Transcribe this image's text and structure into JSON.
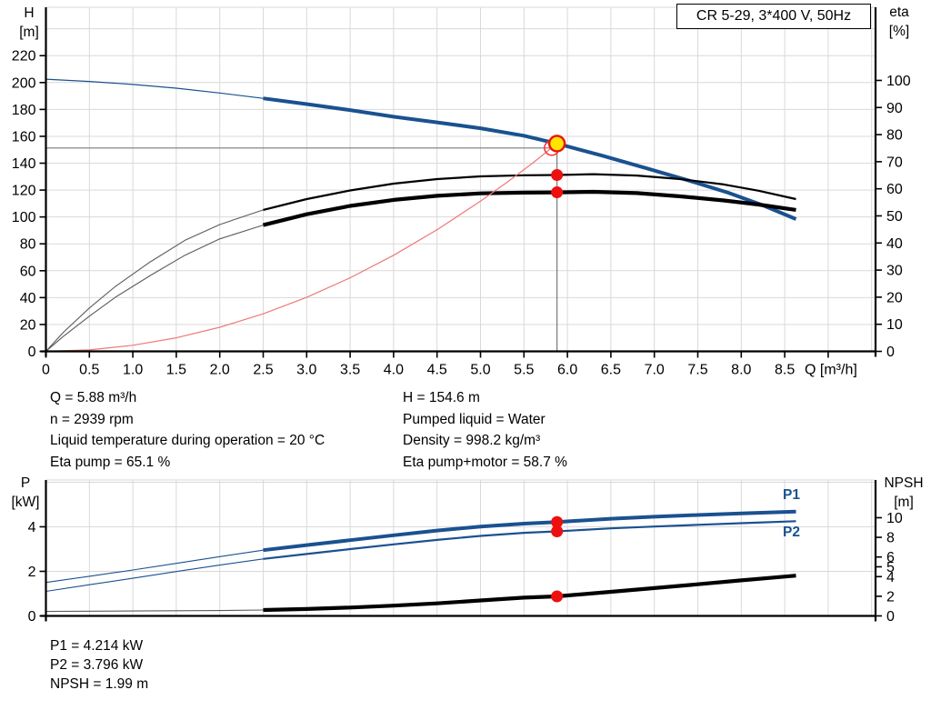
{
  "title_box": {
    "label": "CR 5-29, 3*400 V, 50Hz"
  },
  "axis_corner_labels": {
    "top_left": [
      "H",
      "[m]"
    ],
    "top_right": [
      "eta",
      "[%]"
    ],
    "bottom_left": [
      "P",
      "[kW]"
    ],
    "bottom_right": [
      "NPSH",
      "[m]"
    ]
  },
  "info_blocks": {
    "left": [
      "Q = 5.88 m³/h",
      "n = 2939 rpm",
      "Liquid temperature during operation = 20 °C",
      "Eta pump = 65.1 %"
    ],
    "right": [
      "H = 154.6 m",
      "Pumped liquid = Water",
      "Density = 998.2 kg/m³",
      "Eta pump+motor = 58.7 %"
    ],
    "bottom": [
      "P1 = 4.214 kW",
      "P2 = 3.796 kW",
      "NPSH = 1.99 m"
    ]
  },
  "series_labels": {
    "p1": "P1",
    "p2": "P2"
  },
  "colors": {
    "curve_blue": "#1a5190",
    "black": "#000000",
    "gray_ext": "#5a5a5a",
    "system_red": "#f07878",
    "marker_red": "#ee0f0f",
    "marker_yellow": "#ffe400",
    "grid": "#d9d9d9",
    "connector": "#7a7a7a",
    "axis": "#000000"
  },
  "chart_data": [
    {
      "type": "line",
      "title": "CR 5-29, 3*400 V, 50Hz",
      "xlabel": "Q [m³/h]",
      "ylabel_left": "H [m]",
      "ylabel_right": "eta [%]",
      "x_range": [
        0,
        9.545
      ],
      "x_tick_step": 0.5,
      "x_ticks_labeled": [
        0,
        0.5,
        1.0,
        1.5,
        2.0,
        2.5,
        3.0,
        3.5,
        4.0,
        4.5,
        5.0,
        5.5,
        6.0,
        6.5,
        7.0,
        7.5,
        8.0,
        8.5
      ],
      "show_x_labels": true,
      "y_left_range": [
        0,
        256
      ],
      "y_left_ticks": [
        0,
        20,
        40,
        60,
        80,
        100,
        120,
        140,
        160,
        180,
        200,
        220
      ],
      "grid_y_step": 20,
      "y_right_range": [
        0,
        127
      ],
      "y_right_ticks": [
        0,
        10,
        20,
        30,
        40,
        50,
        60,
        70,
        80,
        90,
        100
      ],
      "series": [
        {
          "name": "qh-curve-extension",
          "axis": "left",
          "color": "curve_blue",
          "width": 1.2,
          "points": [
            [
              0,
              202.5
            ],
            [
              0.5,
              200.8
            ],
            [
              1,
              198.6
            ],
            [
              1.5,
              195.8
            ],
            [
              2,
              192.2
            ],
            [
              2.5,
              188.2
            ]
          ]
        },
        {
          "name": "qh-curve",
          "axis": "left",
          "color": "curve_blue",
          "width": 4,
          "points": [
            [
              2.5,
              188.2
            ],
            [
              3,
              184
            ],
            [
              3.5,
              179.5
            ],
            [
              4,
              174.6
            ],
            [
              4.5,
              170.4
            ],
            [
              5,
              166
            ],
            [
              5.5,
              160.4
            ],
            [
              5.88,
              154.6
            ],
            [
              6.4,
              145.6
            ],
            [
              6.9,
              136.4
            ],
            [
              7.4,
              127
            ],
            [
              7.85,
              118
            ],
            [
              8.25,
              108.6
            ],
            [
              8.63,
              98.4
            ]
          ]
        },
        {
          "name": "eta-pump-curve-extension",
          "axis": "right",
          "color": "gray_ext",
          "width": 1.1,
          "points": [
            [
              0,
              0
            ],
            [
              0.2,
              7
            ],
            [
              0.5,
              16
            ],
            [
              0.8,
              24
            ],
            [
              1.2,
              33
            ],
            [
              1.6,
              41
            ],
            [
              2,
              46.8
            ],
            [
              2.5,
              52.2
            ]
          ]
        },
        {
          "name": "eta-pump-curve",
          "axis": "right",
          "color": "black",
          "width": 2.2,
          "points": [
            [
              2.5,
              52.2
            ],
            [
              3,
              56.2
            ],
            [
              3.5,
              59.4
            ],
            [
              4,
              61.9
            ],
            [
              4.5,
              63.6
            ],
            [
              5,
              64.6
            ],
            [
              5.5,
              65.0
            ],
            [
              5.88,
              65.1
            ],
            [
              6.3,
              65.4
            ],
            [
              6.8,
              64.9
            ],
            [
              7.3,
              63.6
            ],
            [
              7.8,
              61.6
            ],
            [
              8.2,
              59.3
            ],
            [
              8.63,
              56.2
            ]
          ]
        },
        {
          "name": "eta-pump-motor-curve-extension",
          "axis": "right",
          "color": "gray_ext",
          "width": 1.1,
          "points": [
            [
              0,
              0
            ],
            [
              0.2,
              5.5
            ],
            [
              0.5,
              13
            ],
            [
              0.8,
              20
            ],
            [
              1.2,
              28
            ],
            [
              1.6,
              35.5
            ],
            [
              2,
              41.5
            ],
            [
              2.5,
              46.6
            ]
          ]
        },
        {
          "name": "eta-pump-motor-curve",
          "axis": "right",
          "color": "black",
          "width": 4.2,
          "points": [
            [
              2.5,
              46.6
            ],
            [
              3,
              50.6
            ],
            [
              3.5,
              53.7
            ],
            [
              4,
              55.9
            ],
            [
              4.5,
              57.4
            ],
            [
              5,
              58.3
            ],
            [
              5.5,
              58.6
            ],
            [
              5.88,
              58.7
            ],
            [
              6.3,
              58.9
            ],
            [
              6.8,
              58.4
            ],
            [
              7.3,
              57.2
            ],
            [
              7.8,
              55.7
            ],
            [
              8.2,
              54.2
            ],
            [
              8.63,
              52.2
            ]
          ]
        },
        {
          "name": "system-curve",
          "axis": "left",
          "color": "system_red",
          "width": 1.2,
          "points": [
            [
              0,
              0
            ],
            [
              0.5,
              1.1
            ],
            [
              1,
              4.5
            ],
            [
              1.5,
              10.1
            ],
            [
              2,
              17.9
            ],
            [
              2.5,
              27.9
            ],
            [
              3,
              40.2
            ],
            [
              3.5,
              54.7
            ],
            [
              4,
              71.5
            ],
            [
              4.5,
              90.5
            ],
            [
              5,
              111.7
            ],
            [
              5.3,
              125.5
            ],
            [
              5.6,
              140.1
            ],
            [
              5.88,
              154.6
            ]
          ]
        }
      ],
      "guides": [
        {
          "name": "flow-guide-line",
          "dir": "v",
          "q": 5.88,
          "axis": "left",
          "v1": 0,
          "v2": 154.6
        },
        {
          "name": "head-guide-line",
          "dir": "h",
          "axis": "left",
          "value": 151.3,
          "q1": 0,
          "q2": 5.82
        }
      ],
      "markers": [
        {
          "name": "eta-pump-point",
          "q": 5.88,
          "value": 65.1,
          "axis": "right",
          "style": "dot"
        },
        {
          "name": "eta-pump-motor-point",
          "q": 5.88,
          "value": 58.7,
          "axis": "right",
          "style": "dot"
        },
        {
          "name": "duty-point-circle",
          "q": 5.82,
          "value": 151.3,
          "axis": "left",
          "style": "open"
        },
        {
          "name": "operating-point",
          "q": 5.88,
          "value": 154.6,
          "axis": "left",
          "style": "operating"
        }
      ]
    },
    {
      "type": "line",
      "xlabel": "",
      "ylabel_left": "P [kW]",
      "ylabel_right": "NPSH [m]",
      "x_range": [
        0,
        9.545
      ],
      "x_tick_step": 0.5,
      "x_ticks_labeled": [],
      "show_x_labels": false,
      "y_left_range": [
        0,
        6.1
      ],
      "y_left_ticks": [
        0,
        2,
        4
      ],
      "grid_y_step": 2,
      "y_right_range": [
        0,
        13.84
      ],
      "y_right_ticks": [
        0,
        2,
        4,
        5,
        6,
        8,
        10
      ],
      "series": [
        {
          "name": "p1-curve-extension",
          "axis": "left",
          "color": "curve_blue",
          "width": 1.1,
          "points": [
            [
              0,
              1.5
            ],
            [
              0.5,
              1.78
            ],
            [
              1,
              2.06
            ],
            [
              1.5,
              2.36
            ],
            [
              2,
              2.66
            ],
            [
              2.5,
              2.95
            ]
          ]
        },
        {
          "name": "p1-curve",
          "axis": "left",
          "color": "curve_blue",
          "width": 4,
          "points": [
            [
              2.5,
              2.95
            ],
            [
              3,
              3.18
            ],
            [
              3.5,
              3.4
            ],
            [
              4,
              3.62
            ],
            [
              4.5,
              3.83
            ],
            [
              5,
              4.01
            ],
            [
              5.5,
              4.14
            ],
            [
              5.88,
              4.214
            ],
            [
              6.5,
              4.36
            ],
            [
              7,
              4.45
            ],
            [
              7.5,
              4.53
            ],
            [
              8,
              4.6
            ],
            [
              8.63,
              4.68
            ]
          ]
        },
        {
          "name": "p2-curve-extension",
          "axis": "left",
          "color": "curve_blue",
          "width": 1.1,
          "points": [
            [
              0,
              1.1
            ],
            [
              0.5,
              1.4
            ],
            [
              1,
              1.69
            ],
            [
              1.5,
              1.99
            ],
            [
              2,
              2.28
            ],
            [
              2.5,
              2.56
            ]
          ]
        },
        {
          "name": "p2-curve",
          "axis": "left",
          "color": "curve_blue",
          "width": 2.2,
          "points": [
            [
              2.5,
              2.56
            ],
            [
              3,
              2.78
            ],
            [
              3.5,
              3.0
            ],
            [
              4,
              3.21
            ],
            [
              4.5,
              3.41
            ],
            [
              5,
              3.59
            ],
            [
              5.5,
              3.73
            ],
            [
              5.88,
              3.796
            ],
            [
              6.5,
              3.93
            ],
            [
              7,
              4.01
            ],
            [
              7.5,
              4.09
            ],
            [
              8,
              4.16
            ],
            [
              8.63,
              4.25
            ]
          ]
        },
        {
          "name": "npsh-curve-extension",
          "axis": "right",
          "color": "gray_ext",
          "width": 1.1,
          "points": [
            [
              0,
              0.45
            ],
            [
              1,
              0.5
            ],
            [
              2,
              0.55
            ],
            [
              2.5,
              0.6
            ]
          ]
        },
        {
          "name": "npsh-curve",
          "axis": "right",
          "color": "black",
          "width": 4.2,
          "points": [
            [
              2.5,
              0.6
            ],
            [
              3,
              0.7
            ],
            [
              3.5,
              0.85
            ],
            [
              4,
              1.05
            ],
            [
              4.5,
              1.28
            ],
            [
              5,
              1.57
            ],
            [
              5.5,
              1.86
            ],
            [
              5.88,
              1.99
            ],
            [
              6.5,
              2.45
            ],
            [
              7,
              2.83
            ],
            [
              7.5,
              3.22
            ],
            [
              8,
              3.62
            ],
            [
              8.63,
              4.1
            ]
          ]
        }
      ],
      "guides": [],
      "markers": [
        {
          "name": "p1-point",
          "q": 5.88,
          "value": 4.214,
          "axis": "left",
          "style": "dot"
        },
        {
          "name": "p2-point",
          "q": 5.88,
          "value": 3.796,
          "axis": "left",
          "style": "dot"
        },
        {
          "name": "npsh-point",
          "q": 5.88,
          "value": 1.99,
          "axis": "right",
          "style": "dot"
        }
      ]
    }
  ]
}
